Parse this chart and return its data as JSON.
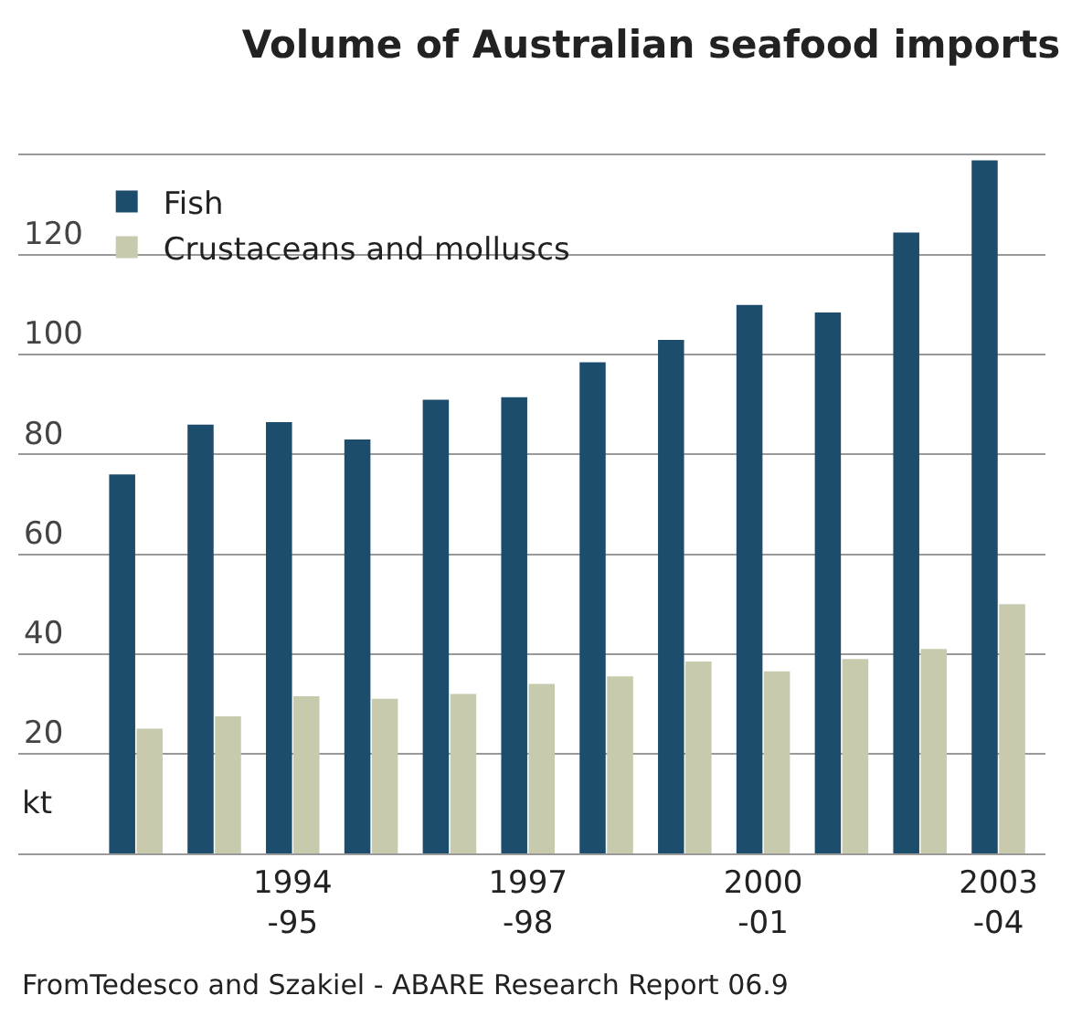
{
  "chart_data": {
    "type": "bar",
    "title": "Volume of Australian seafood imports",
    "ylabel": "kt",
    "categories": [
      null,
      null,
      "1994\n-95",
      null,
      null,
      "1997\n-98",
      null,
      null,
      "2000\n-01",
      null,
      null,
      "2003\n-04"
    ],
    "series": [
      {
        "name": "Fish",
        "color": "#1d4d6d",
        "values": [
          76,
          86,
          86.5,
          83,
          91,
          91.5,
          98.5,
          103,
          110,
          108.5,
          124.5,
          139
        ]
      },
      {
        "name": "Crustaceans and molluscs",
        "color": "#c8caae",
        "values": [
          25,
          27.5,
          31.5,
          31,
          32,
          34,
          35.5,
          38.5,
          36.5,
          39,
          41,
          50
        ]
      }
    ],
    "ylim": [
      0,
      140
    ],
    "yticks": [
      {
        "value": 0,
        "label": null
      },
      20,
      40,
      60,
      80,
      100,
      120,
      {
        "value": 140,
        "label": null
      }
    ],
    "grid": "y",
    "legend": "top left",
    "annotations": [
      "FromTedesco and Szakiel - ABARE Research Report 06.9"
    ]
  }
}
